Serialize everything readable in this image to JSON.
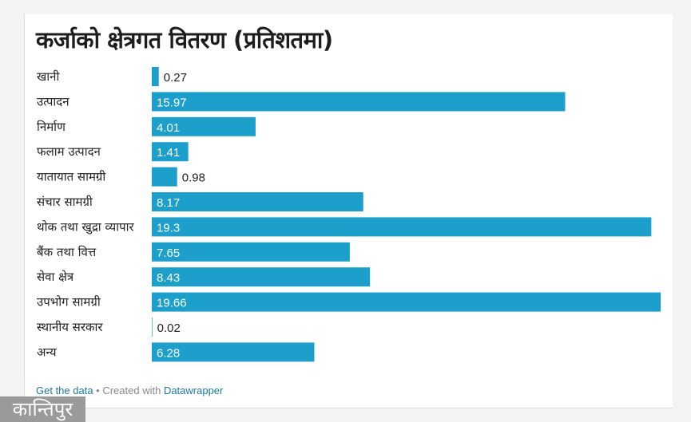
{
  "chart_data": {
    "type": "bar",
    "orientation": "horizontal",
    "title": "कर्जाको क्षेत्रगत वितरण (प्रतिशतमा)",
    "categories": [
      "खानी",
      "उत्पादन",
      "निर्माण",
      "फलाम उत्पादन",
      "यातायात सामग्री",
      "संचार सामग्री",
      "थोक तथा खुद्रा व्यापार",
      "बैंक तथा वित्त",
      "सेवा क्षेत्र",
      "उपभोग सामग्री",
      "स्थानीय सरकार",
      "अन्य"
    ],
    "values": [
      0.27,
      15.97,
      4.01,
      1.41,
      0.98,
      8.17,
      19.3,
      7.65,
      8.43,
      19.66,
      0.02,
      6.28
    ],
    "value_labels": [
      "0.27",
      "15.97",
      "4.01",
      "1.41",
      "0.98",
      "8.17",
      "19.3",
      "7.65",
      "8.43",
      "19.66",
      "0.02",
      "6.28"
    ],
    "xlim": [
      0,
      19.66
    ],
    "grid": false,
    "bar_color": "#1d9fcb"
  },
  "footer": {
    "get_data": "Get the data",
    "separator": " • Created with ",
    "datawrapper": "Datawrapper"
  },
  "logo": "कान्तिपुर"
}
